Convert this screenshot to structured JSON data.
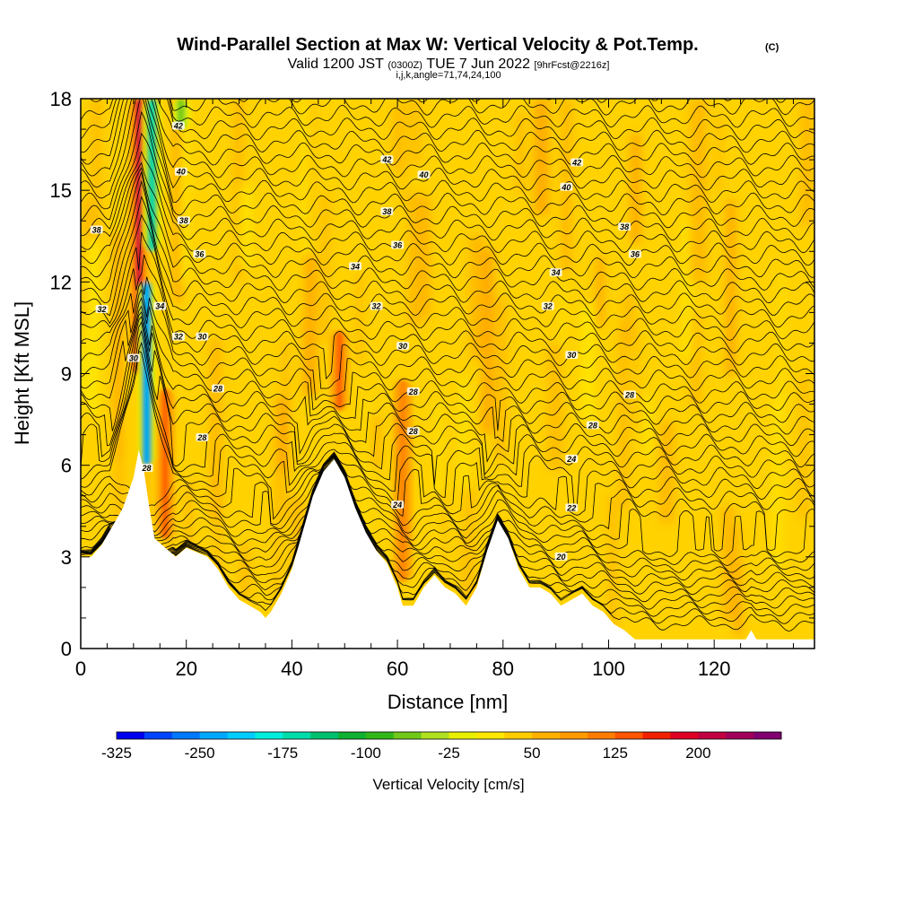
{
  "chart_data": {
    "type": "heatmap",
    "title": "Wind-Parallel Section at Max W: Vertical Velocity & Pot.Temp.",
    "title_mark": "(C)",
    "subtitle": {
      "valid": "Valid 1200 JST",
      "utc": "(0300Z)",
      "date": "TUE 7 Jun 2022",
      "forecast": "[9hrFcst@2216z]",
      "params": "i,j,k,angle=71,74,24,100"
    },
    "xlabel": "Distance [nm]",
    "ylabel": "Height [Kft MSL]",
    "xlim": [
      0,
      139
    ],
    "ylim": [
      0,
      18
    ],
    "x_ticks": [
      "0",
      "20",
      "40",
      "60",
      "80",
      "100",
      "120"
    ],
    "y_ticks": [
      "0",
      "3",
      "6",
      "9",
      "12",
      "15",
      "18"
    ],
    "colorbar": {
      "label": "Vertical Velocity [cm/s]",
      "ticks": [
        "-325",
        "-250",
        "-175",
        "-100",
        "-25",
        "50",
        "125",
        "200"
      ],
      "min": -325,
      "max": 250,
      "step": 25,
      "colors": [
        "#0000ee",
        "#0044ff",
        "#0077ff",
        "#00a8ff",
        "#00ccff",
        "#00eedd",
        "#00ddaa",
        "#00c070",
        "#10b030",
        "#30b818",
        "#70c818",
        "#b0e020",
        "#e8f000",
        "#ffe800",
        "#ffcc00",
        "#ffb000",
        "#ff9a00",
        "#ff7c00",
        "#ff5400",
        "#f02000",
        "#dd0022",
        "#c00040",
        "#a00058",
        "#800070"
      ]
    },
    "terrain_profile": [
      [
        0,
        3.0
      ],
      [
        2,
        3.0
      ],
      [
        4,
        3.4
      ],
      [
        6,
        4.0
      ],
      [
        8,
        4.6
      ],
      [
        10,
        5.6
      ],
      [
        11,
        6.5
      ],
      [
        12,
        5.8
      ],
      [
        13,
        4.6
      ],
      [
        14,
        3.6
      ],
      [
        16,
        3.3
      ],
      [
        18,
        3.0
      ],
      [
        20,
        3.3
      ],
      [
        24,
        3.0
      ],
      [
        26,
        2.6
      ],
      [
        28,
        2.0
      ],
      [
        30,
        1.6
      ],
      [
        32,
        1.4
      ],
      [
        34,
        1.2
      ],
      [
        35,
        1.0
      ],
      [
        36,
        1.2
      ],
      [
        38,
        1.8
      ],
      [
        40,
        2.6
      ],
      [
        42,
        3.8
      ],
      [
        44,
        5.0
      ],
      [
        46,
        5.8
      ],
      [
        48,
        6.2
      ],
      [
        50,
        5.6
      ],
      [
        52,
        4.6
      ],
      [
        54,
        3.8
      ],
      [
        56,
        3.2
      ],
      [
        58,
        2.8
      ],
      [
        60,
        2.0
      ],
      [
        61,
        1.4
      ],
      [
        63,
        1.4
      ],
      [
        65,
        2.0
      ],
      [
        67,
        2.4
      ],
      [
        69,
        2.0
      ],
      [
        71,
        1.8
      ],
      [
        73,
        1.4
      ],
      [
        75,
        2.0
      ],
      [
        77,
        3.2
      ],
      [
        79,
        4.2
      ],
      [
        81,
        3.6
      ],
      [
        83,
        2.6
      ],
      [
        85,
        2.0
      ],
      [
        87,
        2.0
      ],
      [
        89,
        1.8
      ],
      [
        91,
        1.4
      ],
      [
        93,
        1.6
      ],
      [
        95,
        1.8
      ],
      [
        97,
        1.4
      ],
      [
        99,
        1.2
      ],
      [
        101,
        0.8
      ],
      [
        103,
        0.6
      ],
      [
        105,
        0.3
      ],
      [
        107,
        0.3
      ],
      [
        120,
        0.3
      ],
      [
        126,
        0.3
      ],
      [
        127,
        0.6
      ],
      [
        128,
        0.3
      ],
      [
        139,
        0.3
      ]
    ],
    "updraft_cores": [
      {
        "x": 11.0,
        "y_bottom": 9.0,
        "y_top": 18.0,
        "value": 200
      },
      {
        "x": 16.0,
        "y_bottom": 3.6,
        "y_top": 8.5,
        "value": 125
      },
      {
        "x": 49.0,
        "y_bottom": 7.8,
        "y_top": 10.4,
        "value": 125
      },
      {
        "x": 61.0,
        "y_bottom": 2.2,
        "y_top": 8.8,
        "value": 100
      }
    ],
    "downdraft_cores": [
      {
        "x": 12.5,
        "y_bottom": 6.0,
        "y_top": 12.0,
        "value": -250
      },
      {
        "x": 13.5,
        "y_bottom": 13.0,
        "y_top": 18.0,
        "value": -175
      },
      {
        "x": 19.0,
        "y_bottom": 17.0,
        "y_top": 18.0,
        "value": -75
      }
    ],
    "pot_temp_levels": [
      20,
      22,
      24,
      26,
      28,
      30,
      32,
      34,
      36,
      38,
      40,
      42
    ],
    "pot_temp_labels": [
      {
        "text": "42",
        "x": 18.5,
        "y": 17.1
      },
      {
        "text": "42",
        "x": 58,
        "y": 16.0
      },
      {
        "text": "42",
        "x": 94,
        "y": 15.9
      },
      {
        "text": "40",
        "x": 19,
        "y": 15.6
      },
      {
        "text": "40",
        "x": 65,
        "y": 15.5
      },
      {
        "text": "40",
        "x": 92,
        "y": 15.1
      },
      {
        "text": "38",
        "x": 3,
        "y": 13.7
      },
      {
        "text": "38",
        "x": 19.5,
        "y": 14.0
      },
      {
        "text": "38",
        "x": 58,
        "y": 14.3
      },
      {
        "text": "38",
        "x": 103,
        "y": 13.8
      },
      {
        "text": "36",
        "x": 22.5,
        "y": 12.9
      },
      {
        "text": "36",
        "x": 60,
        "y": 13.2
      },
      {
        "text": "36",
        "x": 105,
        "y": 12.9
      },
      {
        "text": "34",
        "x": 52,
        "y": 12.5
      },
      {
        "text": "34",
        "x": 90,
        "y": 12.3
      },
      {
        "text": "34",
        "x": 15,
        "y": 11.2
      },
      {
        "text": "32",
        "x": 4,
        "y": 11.1
      },
      {
        "text": "32",
        "x": 18.5,
        "y": 10.2
      },
      {
        "text": "32",
        "x": 56,
        "y": 11.2
      },
      {
        "text": "32",
        "x": 88.5,
        "y": 11.2
      },
      {
        "text": "30",
        "x": 23,
        "y": 10.2
      },
      {
        "text": "30",
        "x": 61,
        "y": 9.9
      },
      {
        "text": "30",
        "x": 93,
        "y": 9.6
      },
      {
        "text": "30",
        "x": 10,
        "y": 9.5
      },
      {
        "text": "28",
        "x": 26,
        "y": 8.5
      },
      {
        "text": "28",
        "x": 63,
        "y": 8.4
      },
      {
        "text": "28",
        "x": 104,
        "y": 8.3
      },
      {
        "text": "28",
        "x": 23,
        "y": 6.9
      },
      {
        "text": "28",
        "x": 63,
        "y": 7.1
      },
      {
        "text": "28",
        "x": 97,
        "y": 7.3
      },
      {
        "text": "28",
        "x": 12.5,
        "y": 5.9
      },
      {
        "text": "24",
        "x": 93,
        "y": 6.2
      },
      {
        "text": "24",
        "x": 60,
        "y": 4.7
      },
      {
        "text": "22",
        "x": 93,
        "y": 4.6
      },
      {
        "text": "20",
        "x": 91,
        "y": 3.0
      }
    ]
  }
}
